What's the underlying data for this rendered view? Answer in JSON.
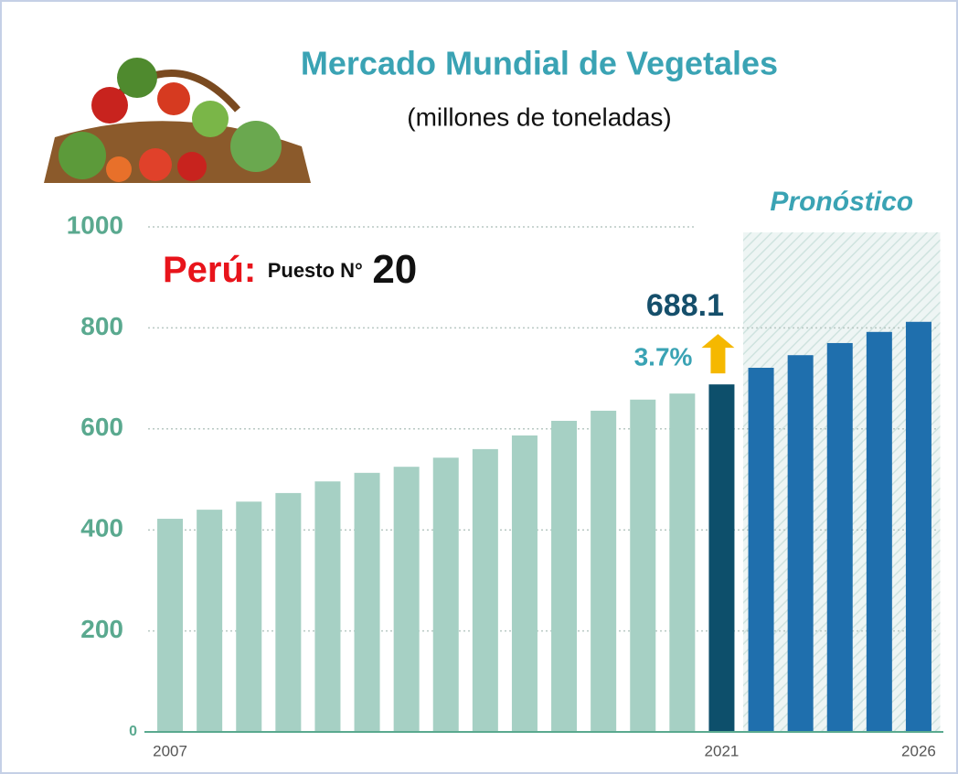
{
  "chart_data": {
    "type": "bar",
    "title": "Mercado Mundial de Vegetales",
    "subtitle": "(millones de toneladas)",
    "categories": [
      "2007",
      null,
      null,
      null,
      null,
      null,
      null,
      null,
      null,
      null,
      null,
      null,
      null,
      null,
      "2021",
      null,
      null,
      null,
      null,
      "2026"
    ],
    "values": [
      422,
      440,
      456,
      473,
      496,
      513,
      525,
      543,
      560,
      587,
      616,
      636,
      658,
      670,
      688.1,
      721,
      746,
      770,
      792,
      812
    ],
    "colors": [
      "#a6d0c4",
      "#a6d0c4",
      "#a6d0c4",
      "#a6d0c4",
      "#a6d0c4",
      "#a6d0c4",
      "#a6d0c4",
      "#a6d0c4",
      "#a6d0c4",
      "#a6d0c4",
      "#a6d0c4",
      "#a6d0c4",
      "#a6d0c4",
      "#a6d0c4",
      "#0d4f6b",
      "#1f6fad",
      "#1f6fad",
      "#1f6fad",
      "#1f6fad",
      "#1f6fad"
    ],
    "ylim": [
      0,
      1000
    ],
    "yticks": [
      0,
      200,
      400,
      600,
      800,
      1000
    ],
    "grid": true,
    "highlight": {
      "color": "#0d4f6b",
      "growth": {
        "value": 3.7,
        "label": "3.7%"
      }
    },
    "forecast": {
      "label": "Pronóstico",
      "color": "#1f6fad"
    },
    "ranking": {
      "country": "Perú:",
      "text": "Puesto N°",
      "rank": 20
    }
  }
}
